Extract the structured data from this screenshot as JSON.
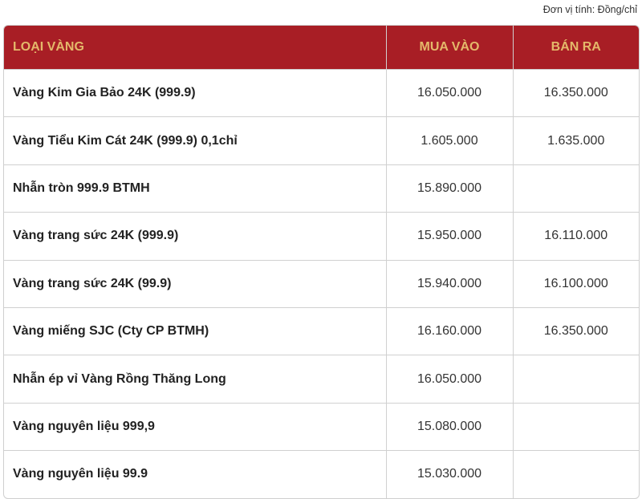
{
  "unit_label": "Đơn vị tính: Đồng/chỉ",
  "colors": {
    "header_bg": "#a81e25",
    "header_text": "#e4b86a"
  },
  "table": {
    "headers": [
      "LOẠI VÀNG",
      "MUA VÀO",
      "BÁN RA"
    ],
    "rows": [
      [
        "Vàng Kim Gia Bảo 24K (999.9)",
        "16.050.000",
        "16.350.000"
      ],
      [
        "Vàng Tiểu Kim Cát 24K (999.9) 0,1chỉ",
        "1.605.000",
        "1.635.000"
      ],
      [
        "Nhẫn tròn 999.9 BTMH",
        "15.890.000",
        ""
      ],
      [
        "Vàng trang sức 24K (999.9)",
        "15.950.000",
        "16.110.000"
      ],
      [
        "Vàng trang sức 24K (99.9)",
        "15.940.000",
        "16.100.000"
      ],
      [
        "Vàng miếng SJC (Cty CP BTMH)",
        "16.160.000",
        "16.350.000"
      ],
      [
        "Nhẫn ép vỉ Vàng Rồng Thăng Long",
        "16.050.000",
        ""
      ],
      [
        "Vàng nguyên liệu 999,9",
        "15.080.000",
        ""
      ],
      [
        "Vàng nguyên liệu 99.9",
        "15.030.000",
        ""
      ]
    ]
  }
}
